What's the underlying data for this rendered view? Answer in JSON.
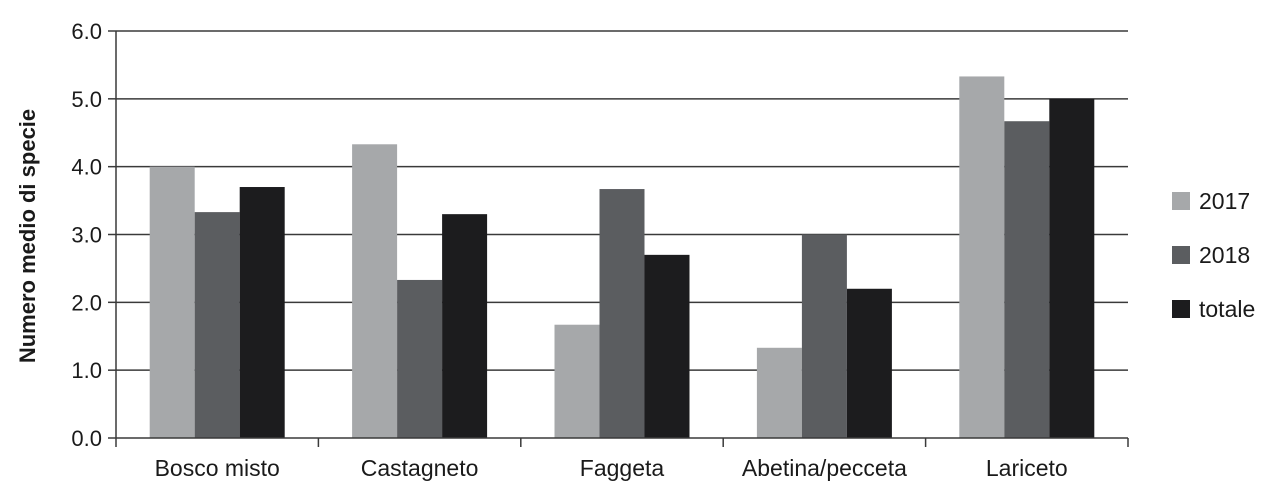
{
  "chart_data": {
    "type": "bar",
    "title": "",
    "xlabel": "",
    "ylabel": "Numero medio di specie",
    "ylim": [
      0,
      6
    ],
    "yticks": [
      "0.0",
      "1.0",
      "2.0",
      "3.0",
      "4.0",
      "5.0",
      "6.0"
    ],
    "grid": true,
    "legend_position": "right",
    "categories": [
      "Bosco misto",
      "Castagneto",
      "Faggeta",
      "Abetina/pecceta",
      "Lariceto"
    ],
    "series": [
      {
        "name": "2017",
        "color": "#a6a8aa",
        "values": [
          4.0,
          4.33,
          1.67,
          1.33,
          5.33
        ]
      },
      {
        "name": "2018",
        "color": "#5b5d60",
        "values": [
          3.33,
          2.33,
          3.67,
          3.0,
          4.67
        ]
      },
      {
        "name": "totale",
        "color": "#1c1c1e",
        "values": [
          3.7,
          3.3,
          2.7,
          2.2,
          5.0
        ]
      }
    ]
  }
}
